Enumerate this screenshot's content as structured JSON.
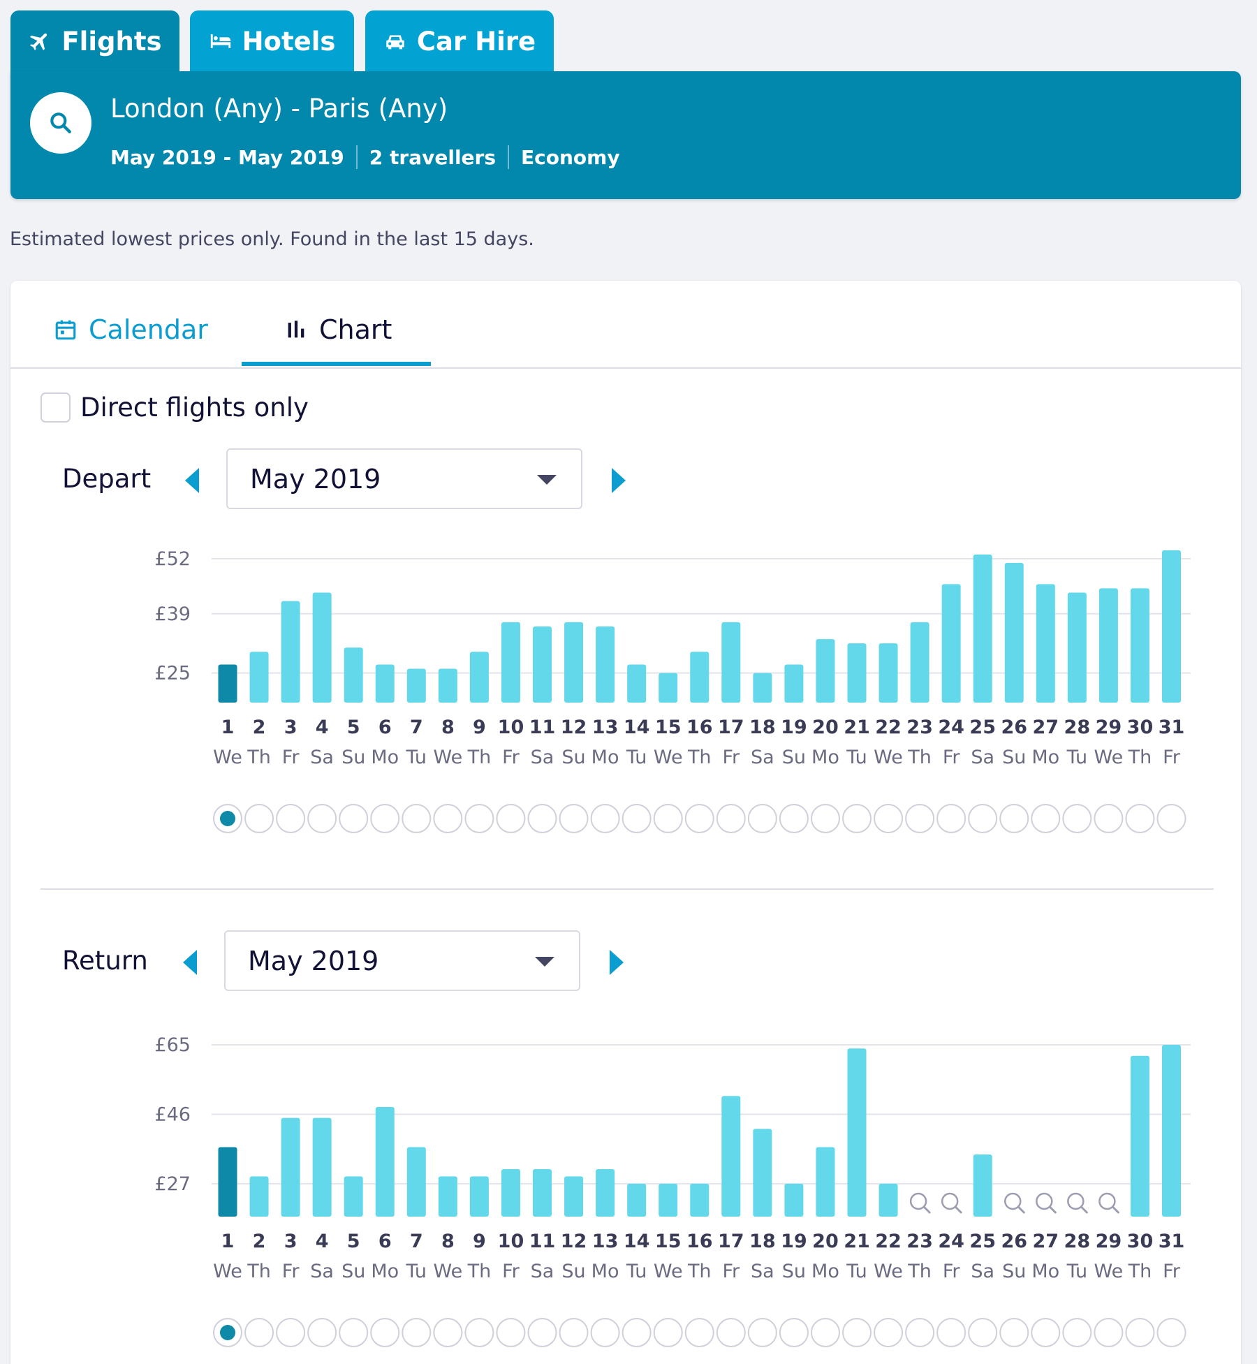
{
  "tabs": [
    {
      "label": "Flights",
      "icon": "plane-icon",
      "active": true
    },
    {
      "label": "Hotels",
      "icon": "bed-icon",
      "active": false
    },
    {
      "label": "Car Hire",
      "icon": "car-icon",
      "active": false
    }
  ],
  "summary": {
    "route": "London (Any) - Paris (Any)",
    "dates": "May 2019 - May 2019",
    "travellers": "2 travellers",
    "cabin": "Economy"
  },
  "note": "Estimated lowest prices only. Found in the last 15 days.",
  "view_tabs": {
    "calendar": "Calendar",
    "chart": "Chart",
    "active": "chart"
  },
  "direct_only": {
    "label": "Direct flights only",
    "checked": false
  },
  "colors": {
    "bar": "#62d8ea",
    "bar_selected": "#0e8aa8",
    "accent": "#0b9cd0",
    "header": "#0288ad",
    "tab": "#02a3d3"
  },
  "day_labels": [
    "1",
    "2",
    "3",
    "4",
    "5",
    "6",
    "7",
    "8",
    "9",
    "10",
    "11",
    "12",
    "13",
    "14",
    "15",
    "16",
    "17",
    "18",
    "19",
    "20",
    "21",
    "22",
    "23",
    "24",
    "25",
    "26",
    "27",
    "28",
    "29",
    "30",
    "31"
  ],
  "weekday_labels": [
    "We",
    "Th",
    "Fr",
    "Sa",
    "Su",
    "Mo",
    "Tu",
    "We",
    "Th",
    "Fr",
    "Sa",
    "Su",
    "Mo",
    "Tu",
    "We",
    "Th",
    "Fr",
    "Sa",
    "Su",
    "Mo",
    "Tu",
    "We",
    "Th",
    "Fr",
    "Sa",
    "Su",
    "Mo",
    "Tu",
    "We",
    "Th",
    "Fr"
  ],
  "depart": {
    "label": "Depart",
    "month": "May 2019",
    "selected_day": 1
  },
  "return": {
    "label": "Return",
    "month": "May 2019",
    "selected_day": 1
  },
  "chart_data": [
    {
      "type": "bar",
      "title": "",
      "xlabel": "",
      "ylabel": "",
      "y_ticks": [
        25,
        39,
        52
      ],
      "y_tick_labels": [
        "£25",
        "£39",
        "£52"
      ],
      "ylim": [
        18,
        52
      ],
      "categories": [
        "1",
        "2",
        "3",
        "4",
        "5",
        "6",
        "7",
        "8",
        "9",
        "10",
        "11",
        "12",
        "13",
        "14",
        "15",
        "16",
        "17",
        "18",
        "19",
        "20",
        "21",
        "22",
        "23",
        "24",
        "25",
        "26",
        "27",
        "28",
        "29",
        "30",
        "31"
      ],
      "values": [
        27,
        30,
        42,
        44,
        31,
        27,
        26,
        26,
        30,
        37,
        36,
        37,
        36,
        27,
        25,
        30,
        37,
        25,
        27,
        33,
        32,
        32,
        37,
        46,
        53,
        51,
        46,
        44,
        45,
        45,
        54
      ]
    },
    {
      "type": "bar",
      "title": "",
      "xlabel": "",
      "ylabel": "",
      "y_ticks": [
        27,
        46,
        65
      ],
      "y_tick_labels": [
        "£27",
        "£46",
        "£65"
      ],
      "ylim": [
        18,
        65
      ],
      "categories": [
        "1",
        "2",
        "3",
        "4",
        "5",
        "6",
        "7",
        "8",
        "9",
        "10",
        "11",
        "12",
        "13",
        "14",
        "15",
        "16",
        "17",
        "18",
        "19",
        "20",
        "21",
        "22",
        "23",
        "24",
        "25",
        "26",
        "27",
        "28",
        "29",
        "30",
        "31"
      ],
      "values": [
        37,
        29,
        45,
        45,
        29,
        48,
        37,
        29,
        29,
        31,
        31,
        29,
        31,
        27,
        27,
        27,
        51,
        42,
        27,
        37,
        64,
        27,
        null,
        null,
        35,
        null,
        null,
        null,
        null,
        62,
        65
      ]
    }
  ]
}
